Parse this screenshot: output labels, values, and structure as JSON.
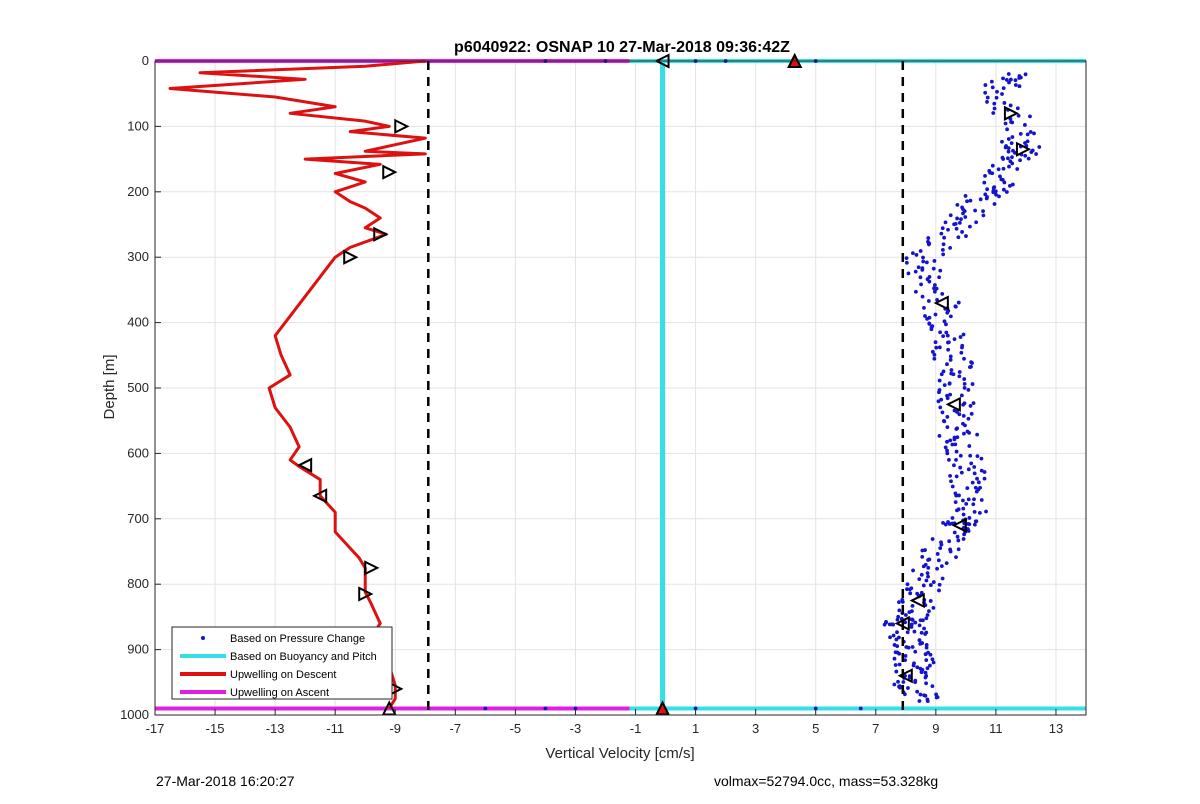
{
  "chart_data": {
    "type": "scatter",
    "title": "p6040922: OSNAP 10 27-Mar-2018 09:36:42Z",
    "xlabel": "Vertical Velocity [cm/s]",
    "ylabel": "Depth [m]",
    "xlim": [
      -17,
      14
    ],
    "ylim": [
      1000,
      0
    ],
    "y_reversed": true,
    "grid": true,
    "xticks": [
      -17,
      -15,
      -13,
      -11,
      -9,
      -7,
      -5,
      -3,
      -1,
      1,
      3,
      5,
      7,
      9,
      11,
      13
    ],
    "yticks": [
      0,
      100,
      200,
      300,
      400,
      500,
      600,
      700,
      800,
      900,
      1000
    ],
    "legend_position": "bottom-left",
    "legend": [
      {
        "label": "Based on Pressure Change",
        "color": "#1414cc",
        "style": "marker"
      },
      {
        "label": "Based on Buoyancy and Pitch",
        "color": "#33e0e8",
        "style": "line"
      },
      {
        "label": "Upwelling on Descent",
        "color": "#dd1111",
        "style": "line"
      },
      {
        "label": "Upwelling on Ascent",
        "color": "#e020e0",
        "style": "line"
      }
    ],
    "series": [
      {
        "name": "Upwelling on Descent",
        "color": "#dd1111",
        "points": [
          [
            -8.0,
            0
          ],
          [
            -10,
            8
          ],
          [
            -15.5,
            18
          ],
          [
            -12,
            28
          ],
          [
            -16.5,
            42
          ],
          [
            -13,
            55
          ],
          [
            -11,
            70
          ],
          [
            -12.5,
            80
          ],
          [
            -10,
            92
          ],
          [
            -9.2,
            100
          ],
          [
            -10.5,
            108
          ],
          [
            -8,
            118
          ],
          [
            -9,
            128
          ],
          [
            -10,
            138
          ],
          [
            -8,
            142
          ],
          [
            -12,
            150
          ],
          [
            -9.5,
            158
          ],
          [
            -11,
            172
          ],
          [
            -10,
            185
          ],
          [
            -11,
            200
          ],
          [
            -10.5,
            215
          ],
          [
            -10,
            225
          ],
          [
            -9.5,
            240
          ],
          [
            -10,
            255
          ],
          [
            -9.3,
            265
          ],
          [
            -10.5,
            285
          ],
          [
            -11,
            300
          ],
          [
            -11.5,
            330
          ],
          [
            -12,
            360
          ],
          [
            -12.5,
            390
          ],
          [
            -13,
            420
          ],
          [
            -12.8,
            450
          ],
          [
            -12.5,
            480
          ],
          [
            -13.2,
            500
          ],
          [
            -13,
            530
          ],
          [
            -12.5,
            560
          ],
          [
            -12.2,
            590
          ],
          [
            -12.5,
            610
          ],
          [
            -12.2,
            620
          ],
          [
            -11.5,
            640
          ],
          [
            -11.5,
            665
          ],
          [
            -11,
            690
          ],
          [
            -11,
            720
          ],
          [
            -10.5,
            745
          ],
          [
            -10.2,
            760
          ],
          [
            -10,
            775
          ],
          [
            -10,
            795
          ],
          [
            -10,
            812
          ],
          [
            -9.8,
            830
          ],
          [
            -9.5,
            860
          ],
          [
            -9.8,
            880
          ],
          [
            -9.5,
            900
          ],
          [
            -9.2,
            925
          ],
          [
            -9,
            955
          ],
          [
            -9,
            975
          ],
          [
            -9.2,
            990
          ]
        ]
      },
      {
        "name": "Based on Pressure Change",
        "color": "#1414cc",
        "points": [
          [
            12,
            20
          ],
          [
            11,
            40
          ],
          [
            11.5,
            80
          ],
          [
            11.8,
            120
          ],
          [
            12,
            140
          ],
          [
            11.5,
            160
          ],
          [
            11,
            190
          ],
          [
            10.5,
            210
          ],
          [
            10,
            240
          ],
          [
            9.5,
            265
          ],
          [
            8.5,
            300
          ],
          [
            8.7,
            330
          ],
          [
            9.2,
            370
          ],
          [
            9.3,
            400
          ],
          [
            9.5,
            430
          ],
          [
            9.6,
            460
          ],
          [
            9.8,
            490
          ],
          [
            9.7,
            520
          ],
          [
            9.5,
            550
          ],
          [
            9.8,
            580
          ],
          [
            10,
            610
          ],
          [
            10,
            640
          ],
          [
            10.2,
            670
          ],
          [
            10,
            700
          ],
          [
            9.8,
            710
          ],
          [
            9.2,
            740
          ],
          [
            9,
            770
          ],
          [
            8.6,
            800
          ],
          [
            8.4,
            825
          ],
          [
            8.2,
            850
          ],
          [
            7.9,
            860
          ],
          [
            8.1,
            880
          ],
          [
            8.2,
            900
          ],
          [
            8.3,
            920
          ],
          [
            8.1,
            940
          ],
          [
            8.3,
            960
          ],
          [
            8.5,
            980
          ]
        ]
      },
      {
        "name": "Based on Buoyancy and Pitch",
        "color": "#33e0e8",
        "points": [
          [
            -0.1,
            0
          ],
          [
            -0.1,
            1000
          ]
        ]
      }
    ],
    "reference_lines_x": [
      -7.9,
      7.9
    ],
    "descent_markers": [
      [
        -8.8,
        100
      ],
      [
        -9.2,
        170
      ],
      [
        -9.5,
        265
      ],
      [
        -10.5,
        300
      ],
      [
        -12.0,
        618
      ],
      [
        -11.5,
        665
      ],
      [
        -9.8,
        775
      ],
      [
        -10.0,
        815
      ],
      [
        -9.8,
        880
      ],
      [
        -9.6,
        920
      ],
      [
        -9.0,
        960
      ],
      [
        -9.2,
        990
      ],
      [
        -0.1,
        990
      ]
    ],
    "ascent_markers": [
      [
        11.5,
        80
      ],
      [
        11.9,
        135
      ],
      [
        9.2,
        370
      ],
      [
        9.6,
        525
      ],
      [
        9.8,
        710
      ],
      [
        8.4,
        825
      ],
      [
        7.9,
        860
      ],
      [
        8.0,
        940
      ],
      [
        -0.1,
        0
      ],
      [
        4.3,
        0
      ]
    ]
  },
  "footer": {
    "left": "27-Mar-2018 16:20:27",
    "right": "volmax=52794.0cc, mass=53.328kg"
  }
}
